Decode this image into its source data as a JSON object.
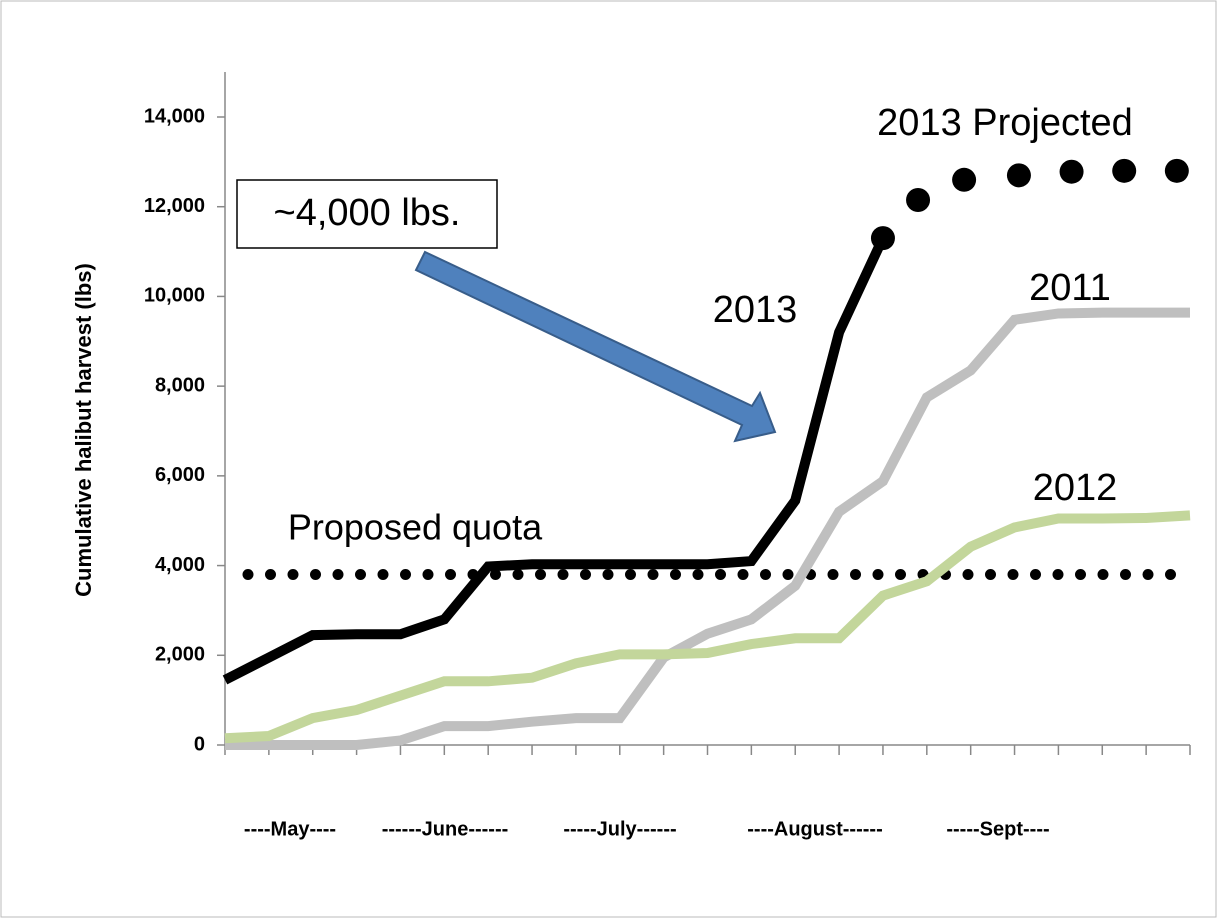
{
  "chart_data": {
    "type": "line",
    "y_axis_label": "Cumulative halibut harvest (lbs)",
    "ylim": [
      0,
      14000
    ],
    "yticks": [
      {
        "value": 0,
        "label": "0"
      },
      {
        "value": 2000,
        "label": "2,000"
      },
      {
        "value": 4000,
        "label": "4,000"
      },
      {
        "value": 6000,
        "label": "6,000"
      },
      {
        "value": 8000,
        "label": "8,000"
      },
      {
        "value": 10000,
        "label": "10,000"
      },
      {
        "value": 12000,
        "label": "12,000"
      },
      {
        "value": 14000,
        "label": "14,000"
      }
    ],
    "xlim": [
      0,
      22
    ],
    "xticks": [
      0,
      1,
      2,
      3,
      4,
      5,
      6,
      7,
      8,
      9,
      10,
      11,
      12,
      13,
      14,
      15,
      16,
      17,
      18,
      19,
      20,
      21,
      22
    ],
    "month_labels": [
      "----May----",
      "------June------",
      "-----July------",
      "----August------",
      "-----Sept----"
    ],
    "series": [
      {
        "name": "2011",
        "color": "#bfbfbf",
        "style": "line",
        "x": [
          0,
          1,
          2,
          3,
          4,
          5,
          6,
          7,
          8,
          9,
          10,
          11,
          12,
          13,
          14,
          15,
          16,
          17,
          18,
          19,
          20,
          21,
          22
        ],
        "values": [
          0,
          0,
          0,
          0,
          100,
          420,
          420,
          520,
          600,
          600,
          1950,
          2480,
          2800,
          3550,
          5200,
          5880,
          7750,
          8350,
          9480,
          9620,
          9640,
          9640,
          9640
        ]
      },
      {
        "name": "2012",
        "color": "#c3d69b",
        "style": "line",
        "x": [
          0,
          1,
          2,
          3,
          4,
          5,
          6,
          7,
          8,
          9,
          10,
          11,
          12,
          13,
          14,
          15,
          16,
          17,
          18,
          19,
          20,
          21,
          22
        ],
        "values": [
          150,
          200,
          600,
          780,
          1100,
          1420,
          1420,
          1500,
          1820,
          2020,
          2020,
          2050,
          2250,
          2380,
          2380,
          3330,
          3650,
          4420,
          4850,
          5050,
          5050,
          5060,
          5120
        ]
      },
      {
        "name": "2013",
        "color": "#000000",
        "style": "line",
        "x": [
          0,
          1,
          2,
          3,
          4,
          5,
          6,
          7,
          8,
          9,
          10,
          11,
          12,
          13,
          14,
          15
        ],
        "values": [
          1450,
          1950,
          2450,
          2470,
          2470,
          2800,
          3980,
          4030,
          4030,
          4030,
          4030,
          4030,
          4100,
          5450,
          9200,
          11300
        ]
      },
      {
        "name": "2013 Projected",
        "color": "#000000",
        "style": "dots",
        "x": [
          15,
          15.8,
          16.85,
          18.1,
          19.3,
          20.5,
          21.7
        ],
        "values": [
          11300,
          12150,
          12600,
          12700,
          12780,
          12800,
          12800
        ]
      }
    ],
    "quota": {
      "label": "Proposed quota",
      "value": 3800
    },
    "callout": "~4,000 lbs."
  }
}
